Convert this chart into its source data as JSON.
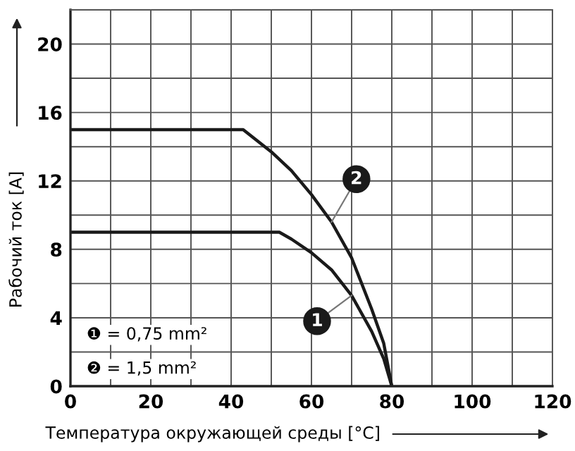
{
  "chart_data": {
    "type": "line",
    "xlabel": "Температура окружающей среды [°C]",
    "ylabel": "Рабочий ток [A]",
    "series": [
      {
        "name": "1",
        "color": "#1a1a1a",
        "x": [
          0,
          52,
          55,
          60,
          65,
          70,
          75,
          78,
          80
        ],
        "values": [
          9,
          9,
          8.6,
          7.8,
          6.8,
          5.3,
          3.2,
          1.6,
          0
        ]
      },
      {
        "name": "2",
        "color": "#1a1a1a",
        "x": [
          0,
          43,
          50,
          55,
          60,
          65,
          70,
          75,
          78,
          80
        ],
        "values": [
          15,
          15,
          13.7,
          12.6,
          11.2,
          9.6,
          7.5,
          4.5,
          2.5,
          0
        ]
      }
    ],
    "annotations": [
      "❶ = 0,75 mm²",
      "❷ = 1,5 mm²"
    ],
    "xlim": [
      0,
      120
    ],
    "xticks": [
      0,
      {
        "value": 10,
        "label": null
      },
      20,
      {
        "value": 30,
        "label": null
      },
      40,
      {
        "value": 50,
        "label": null
      },
      60,
      {
        "value": 70,
        "label": null
      },
      80,
      {
        "value": 90,
        "label": null
      },
      100,
      {
        "value": 110,
        "label": null
      },
      120
    ],
    "ylim": [
      0,
      22
    ],
    "yticks": [
      0,
      {
        "value": 2,
        "label": null
      },
      4,
      {
        "value": 6,
        "label": null
      },
      8,
      {
        "value": 10,
        "label": null
      },
      12,
      {
        "value": 14,
        "label": null
      },
      16,
      {
        "value": 18,
        "label": null
      },
      20,
      {
        "value": 22,
        "label": null
      }
    ],
    "grid": true,
    "marker": "none",
    "line_style": "solid"
  }
}
